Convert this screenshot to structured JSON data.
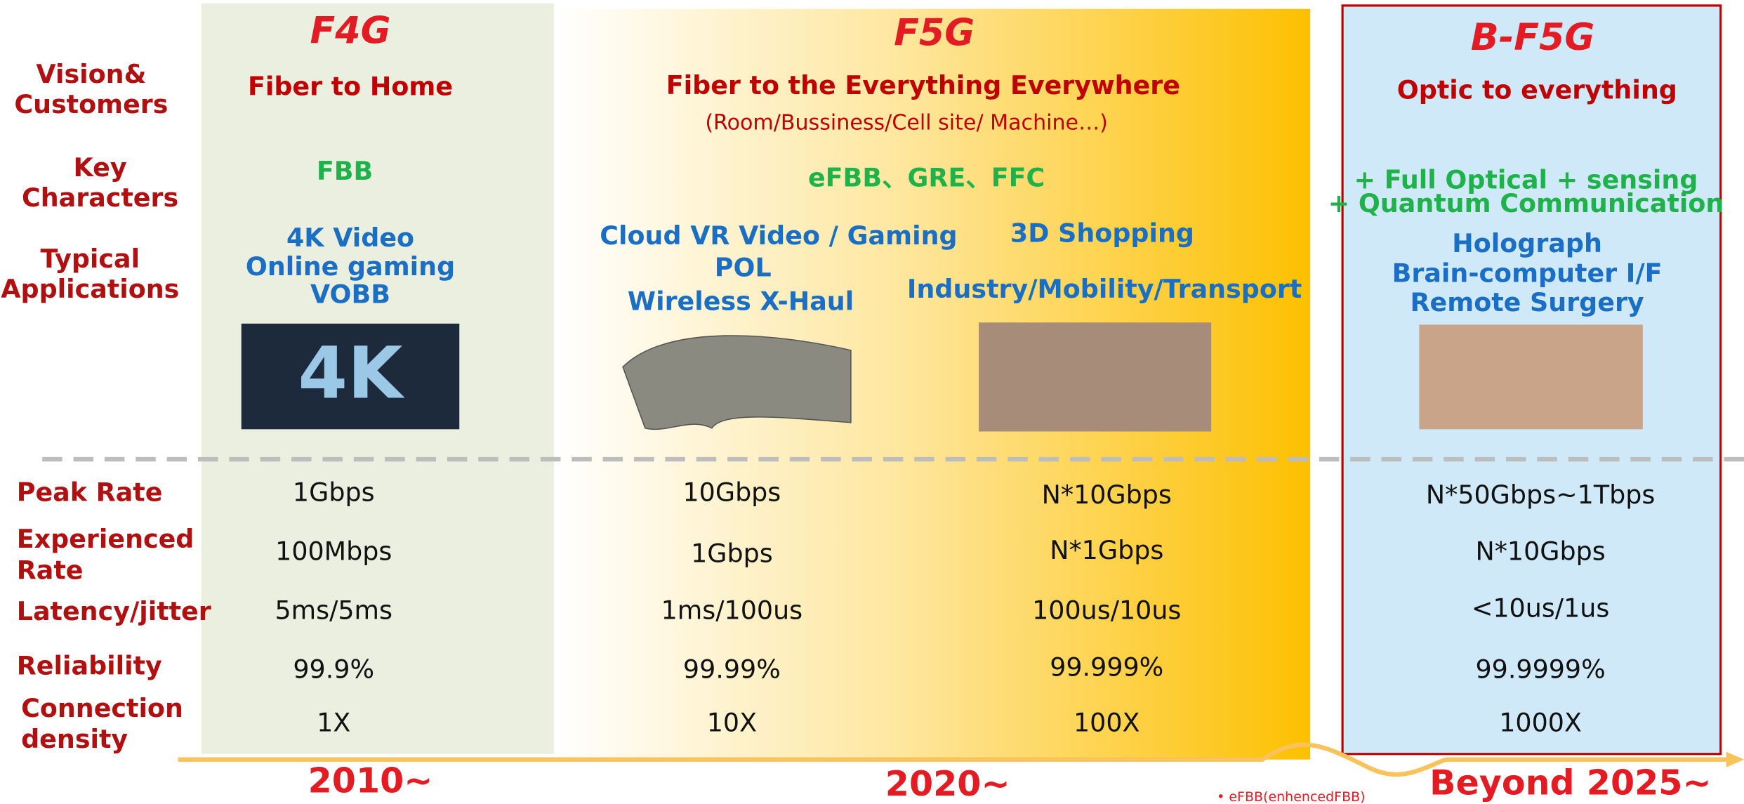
{
  "row_labels": {
    "vision": [
      "Vision&",
      "Customers"
    ],
    "key": [
      "Key",
      "Characters"
    ],
    "apps": [
      "Typical",
      "Applications"
    ]
  },
  "generations": [
    {
      "title": "F4G",
      "vision": "Fiber to Home",
      "key": [
        "FBB"
      ],
      "apps": [
        "4K Video",
        "Online gaming",
        "VOBB"
      ],
      "year": "2010~"
    },
    {
      "title": "F5G",
      "vision": "Fiber to the Everything Everywhere",
      "vision_sub": "(Room/Bussiness/Cell site/ Machine…)",
      "key": [
        "eFBB、GRE、FFC"
      ],
      "apps": [
        "Cloud VR Video / Gaming",
        "POL",
        "Wireless X-Haul"
      ],
      "apps_right": [
        "3D Shopping",
        "Industry/Mobility/Transport"
      ],
      "year": "2020~"
    },
    {
      "title": "B-F5G",
      "vision": "Optic to everything",
      "key": [
        "+ Full Optical  + sensing",
        "+ Quantum Communication"
      ],
      "apps": [
        "Holograph",
        "Brain-computer I/F",
        "Remote Surgery"
      ],
      "year": "Beyond 2025~"
    }
  ],
  "metrics": [
    {
      "label": [
        "Peak Rate"
      ],
      "values": [
        "1Gbps",
        "10Gbps",
        "N*10Gbps",
        "N*50Gbps~1Tbps"
      ]
    },
    {
      "label": [
        "Experienced",
        "Rate"
      ],
      "values": [
        "100Mbps",
        "1Gbps",
        "N*1Gbps",
        "N*10Gbps"
      ]
    },
    {
      "label": [
        "Latency/jitter"
      ],
      "values": [
        "5ms/5ms",
        "1ms/100us",
        "100us/10us",
        "<10us/1us"
      ]
    },
    {
      "label": [
        "Reliability"
      ],
      "values": [
        "99.9%",
        "99.99%",
        "99.999%",
        "99.9999%"
      ]
    },
    {
      "label": [
        "Connection",
        "density"
      ],
      "values": [
        "1X",
        "10X",
        "100X",
        "1000X"
      ]
    }
  ],
  "footnote": "• eFBB(enhencedFBB)"
}
